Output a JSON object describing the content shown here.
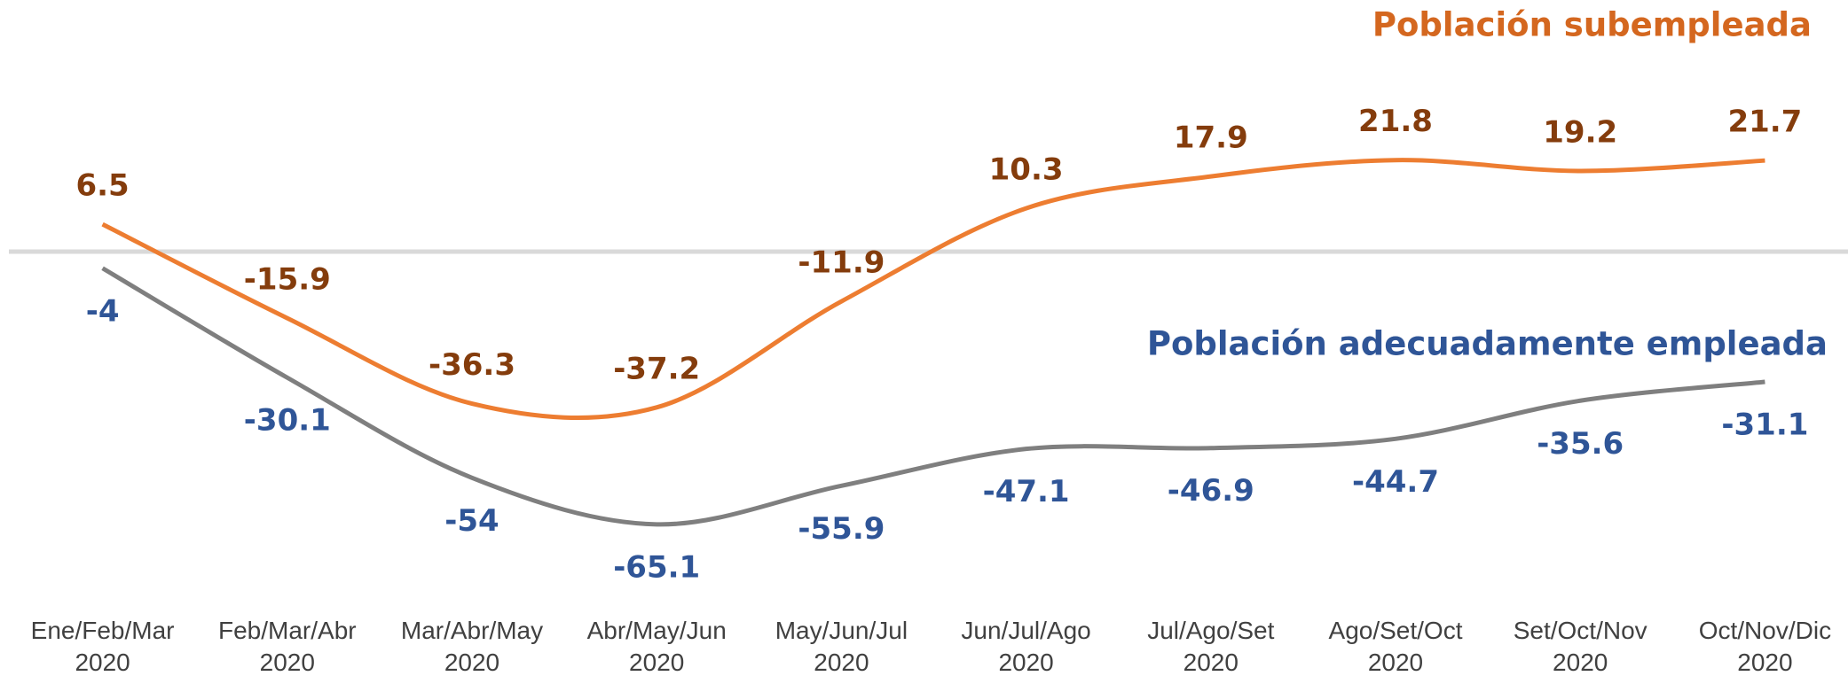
{
  "chart_data": {
    "type": "line",
    "categories": [
      "Ene/Feb/Mar 2020",
      "Feb/Mar/Abr 2020",
      "Mar/Abr/May 2020",
      "Abr/May/Jun 2020",
      "May/Jun/Jul 2020",
      "Jun/Jul/Ago 2020",
      "Jul/Ago/Set 2020",
      "Ago/Set/Oct 2020",
      "Set/Oct/Nov 2020",
      "Oct/Nov/Dic 2020"
    ],
    "series": [
      {
        "name": "Población subempleada",
        "color": "#ed7d31",
        "label_color": "#843c0c",
        "name_color": "#d4671f",
        "values": [
          6.5,
          -15.9,
          -36.3,
          -37.2,
          -11.9,
          10.3,
          17.9,
          21.8,
          19.2,
          21.7
        ]
      },
      {
        "name": "Población adecuadamente empleada",
        "color": "#7f7f7f",
        "label_color": "#2f5597",
        "name_color": "#2f5597",
        "values": [
          -4.0,
          -30.1,
          -54.0,
          -65.1,
          -55.9,
          -47.1,
          -46.9,
          -44.7,
          -35.6,
          -31.1
        ]
      }
    ],
    "ylim": [
      -70,
      60
    ],
    "grid": false
  }
}
